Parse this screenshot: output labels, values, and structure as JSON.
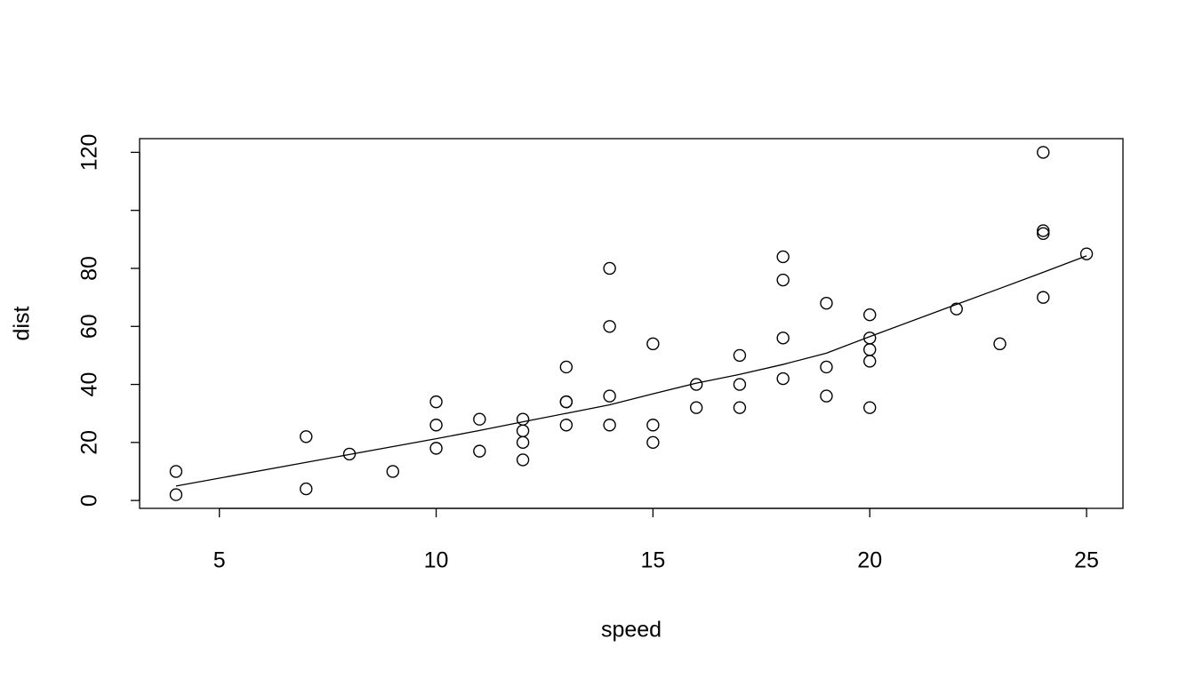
{
  "chart_data": {
    "type": "scatter",
    "x_label": "speed",
    "y_label": "dist",
    "x": [
      4,
      4,
      7,
      7,
      8,
      9,
      10,
      10,
      10,
      11,
      11,
      12,
      12,
      12,
      12,
      13,
      13,
      13,
      13,
      14,
      14,
      14,
      14,
      15,
      15,
      15,
      16,
      16,
      17,
      17,
      17,
      18,
      18,
      18,
      18,
      19,
      19,
      19,
      20,
      20,
      20,
      20,
      20,
      22,
      23,
      24,
      24,
      24,
      24,
      25
    ],
    "values": [
      2,
      10,
      4,
      22,
      16,
      10,
      18,
      26,
      34,
      17,
      28,
      14,
      20,
      24,
      28,
      26,
      34,
      34,
      46,
      26,
      36,
      60,
      80,
      20,
      26,
      54,
      32,
      40,
      32,
      40,
      50,
      42,
      56,
      76,
      84,
      36,
      46,
      68,
      32,
      48,
      52,
      56,
      64,
      66,
      54,
      70,
      92,
      93,
      120,
      85
    ],
    "color": "#000000",
    "smooth": {
      "x": [
        4,
        7,
        8,
        9,
        10,
        11,
        12,
        13,
        14,
        15,
        16,
        17,
        18,
        19,
        20,
        22,
        23,
        24,
        25
      ],
      "values": [
        4.97,
        13.12,
        15.86,
        18.58,
        21.28,
        24.13,
        27.12,
        30.03,
        32.96,
        36.76,
        40.44,
        43.46,
        46.89,
        50.79,
        56.49,
        67.59,
        73.08,
        78.64,
        84.33
      ]
    },
    "xlim": [
      3.16,
      25.84
    ],
    "ylim": [
      -2.72,
      124.72
    ],
    "xticks": [
      5,
      10,
      15,
      20,
      25
    ],
    "yticks": [
      0,
      20,
      40,
      60,
      80,
      {
        "value": 100,
        "label": null
      },
      120
    ]
  }
}
